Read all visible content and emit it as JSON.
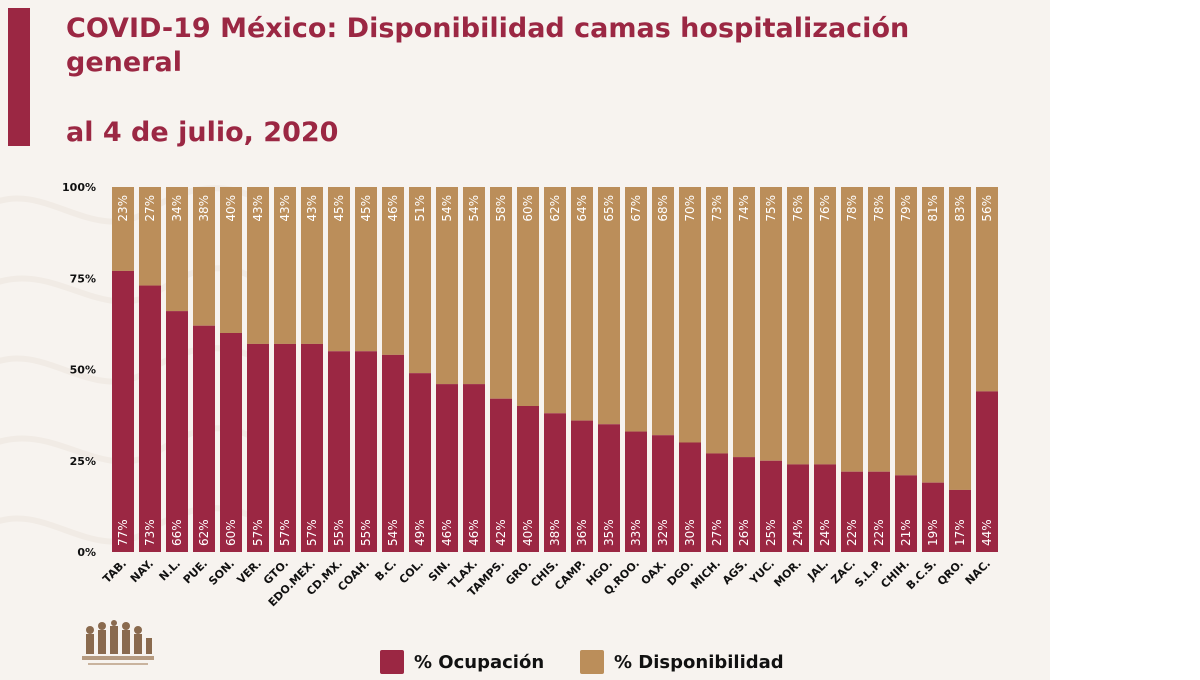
{
  "title": {
    "line1": "COVID-19 México: Disponibilidad camas hospitalización",
    "line2": "general",
    "line3": "al 4 de julio, 2020"
  },
  "legend": {
    "ocupacion": "% Ocupación",
    "disponibilidad": "% Disponibilidad"
  },
  "colors": {
    "ocupacion": "#9b2743",
    "disponibilidad": "#bb8e5a",
    "accent": "#9b2743"
  },
  "chart_data": {
    "type": "bar",
    "stacked": true,
    "title": "COVID-19 México: Disponibilidad camas hospitalización general al 4 de julio, 2020",
    "xlabel": "",
    "ylabel": "",
    "ylim": [
      0,
      100
    ],
    "yticks": [
      "0%",
      "25%",
      "50%",
      "75%",
      "100%"
    ],
    "grid": false,
    "legend_position": "bottom",
    "categories": [
      "TAB.",
      "NAY.",
      "N.L.",
      "PUE.",
      "SON.",
      "VER.",
      "GTO.",
      "EDO.MEX.",
      "CD.MX.",
      "COAH.",
      "B.C.",
      "COL.",
      "SIN.",
      "TLAX.",
      "TAMPS.",
      "GRO.",
      "CHIS.",
      "CAMP.",
      "HGO.",
      "Q.ROO.",
      "OAX.",
      "DGO.",
      "MICH.",
      "AGS.",
      "YUC.",
      "MOR.",
      "JAL.",
      "ZAC.",
      "S.L.P.",
      "CHIH.",
      "B.C.S.",
      "QRO.",
      "NAC."
    ],
    "series": [
      {
        "name": "% Ocupación",
        "values": [
          77,
          73,
          66,
          62,
          60,
          57,
          57,
          57,
          55,
          55,
          54,
          49,
          46,
          46,
          42,
          40,
          38,
          36,
          35,
          33,
          32,
          30,
          27,
          26,
          25,
          24,
          24,
          22,
          22,
          21,
          19,
          17,
          44
        ],
        "labels": [
          "77%",
          "73%",
          "66%",
          "62%",
          "60%",
          "57%",
          "57%",
          "57%",
          "55%",
          "55%",
          "54%",
          "49%",
          "46%",
          "46%",
          "42%",
          "40%",
          "38%",
          "36%",
          "35%",
          "33%",
          "32%",
          "30%",
          "27%",
          "26%",
          "25%",
          "24%",
          "24%",
          "22%",
          "22%",
          "21%",
          "19%",
          "17%",
          "44%"
        ]
      },
      {
        "name": "% Disponibilidad",
        "values": [
          23,
          27,
          34,
          38,
          40,
          43,
          43,
          43,
          45,
          45,
          46,
          51,
          54,
          54,
          58,
          60,
          62,
          64,
          65,
          67,
          68,
          70,
          73,
          74,
          75,
          76,
          76,
          78,
          78,
          79,
          81,
          83,
          56
        ],
        "labels": [
          "23%",
          "27%",
          "34%",
          "38%",
          "40%",
          "43%",
          "43%",
          "43%",
          "45%",
          "45%",
          "46%",
          "51%",
          "54%",
          "54%",
          "58%",
          "60%",
          "62%",
          "64%",
          "65%",
          "67%",
          "68%",
          "70%",
          "73%",
          "74%",
          "75%",
          "76%",
          "76%",
          "78%",
          "78%",
          "79%",
          "81%",
          "83%",
          "56%"
        ]
      }
    ]
  }
}
